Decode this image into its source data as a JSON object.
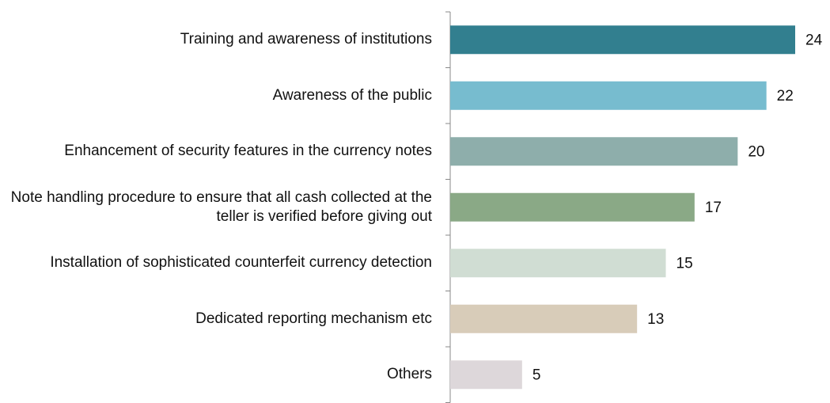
{
  "chart_data": {
    "type": "bar",
    "orientation": "horizontal",
    "categories": [
      "Training and awareness of institutions",
      "Awareness of the public",
      "Enhancement of security features in the currency notes",
      "Note handling procedure to ensure that all cash collected at the teller is verified before giving out",
      "Installation of sophisticated counterfeit currency detection",
      "Dedicated reporting mechanism etc",
      "Others"
    ],
    "values": [
      24,
      22,
      20,
      17,
      15,
      13,
      5
    ],
    "colors": [
      "#327f8f",
      "#77bccf",
      "#8eaeab",
      "#8aa986",
      "#d0ddd3",
      "#d8ccb9",
      "#ddd7da"
    ],
    "xlim": [
      0,
      24
    ]
  }
}
